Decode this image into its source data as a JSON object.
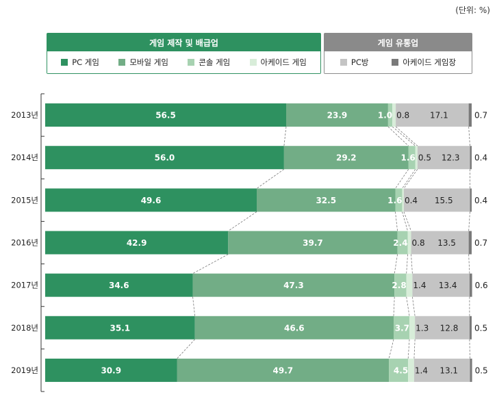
{
  "unit_label": "(단위: %)",
  "legend": {
    "group1": {
      "title": "게임 제작 및 배급업",
      "color": "#2e9160",
      "items": [
        {
          "label": "PC 게임",
          "color": "#2e9160"
        },
        {
          "label": "모바일 게임",
          "color": "#72ad86"
        },
        {
          "label": "콘솔 게임",
          "color": "#a7d2b1"
        },
        {
          "label": "아케이드 게임",
          "color": "#d8edd9"
        }
      ]
    },
    "group2": {
      "title": "게임 유통업",
      "color": "#8a8a8a",
      "items": [
        {
          "label": "PC방",
          "color": "#c4c4c4"
        },
        {
          "label": "아케이드 게임장",
          "color": "#7a7a7a"
        }
      ]
    }
  },
  "chart_data": {
    "type": "bar",
    "orientation": "horizontal",
    "stacked": true,
    "categories": [
      "2013년",
      "2014년",
      "2015년",
      "2016년",
      "2017년",
      "2018년",
      "2019년"
    ],
    "series": [
      {
        "name": "PC 게임",
        "color": "#2e9160",
        "values": [
          56.5,
          56.0,
          49.6,
          42.9,
          34.6,
          35.1,
          30.9
        ],
        "label_color": "#ffffff"
      },
      {
        "name": "모바일 게임",
        "color": "#72ad86",
        "values": [
          23.9,
          29.2,
          32.5,
          39.7,
          47.3,
          46.6,
          49.7
        ],
        "label_color": "#ffffff"
      },
      {
        "name": "콘솔 게임",
        "color": "#a7d2b1",
        "values": [
          1.0,
          1.6,
          1.6,
          2.4,
          2.8,
          3.7,
          4.5
        ],
        "label_color": "#ffffff"
      },
      {
        "name": "아케이드 게임",
        "color": "#d8edd9",
        "values": [
          0.8,
          0.5,
          0.4,
          0.8,
          1.4,
          1.3,
          1.4
        ],
        "label_color": "#222222"
      },
      {
        "name": "PC방",
        "color": "#c4c4c4",
        "values": [
          17.1,
          12.3,
          15.5,
          13.5,
          13.4,
          12.8,
          13.1
        ],
        "label_color": "#222222"
      },
      {
        "name": "아케이드 게임장",
        "color": "#7a7a7a",
        "values": [
          0.7,
          0.4,
          0.4,
          0.7,
          0.6,
          0.5,
          0.5
        ],
        "label_color": "#222222"
      }
    ],
    "xlim": [
      0,
      100
    ],
    "grid": false,
    "legend_position": "top"
  }
}
